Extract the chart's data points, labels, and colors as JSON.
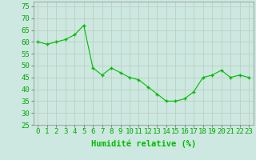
{
  "x": [
    0,
    1,
    2,
    3,
    4,
    5,
    6,
    7,
    8,
    9,
    10,
    11,
    12,
    13,
    14,
    15,
    16,
    17,
    18,
    19,
    20,
    21,
    22,
    23
  ],
  "y": [
    60,
    59,
    60,
    61,
    63,
    67,
    49,
    46,
    49,
    47,
    45,
    44,
    41,
    38,
    35,
    35,
    36,
    39,
    45,
    46,
    48,
    45,
    46,
    45
  ],
  "line_color": "#00bb00",
  "marker_color": "#00bb00",
  "bg_color": "#cce8e0",
  "grid_color": "#bbccbb",
  "tick_label_color": "#00aa00",
  "xlabel": "Humidité relative (%)",
  "xlabel_color": "#00bb00",
  "ylim": [
    25,
    77
  ],
  "yticks": [
    25,
    30,
    35,
    40,
    45,
    50,
    55,
    60,
    65,
    70,
    75
  ],
  "xticks": [
    0,
    1,
    2,
    3,
    4,
    5,
    6,
    7,
    8,
    9,
    10,
    11,
    12,
    13,
    14,
    15,
    16,
    17,
    18,
    19,
    20,
    21,
    22,
    23
  ],
  "axis_fontsize": 6.5,
  "xlabel_fontsize": 7.5
}
